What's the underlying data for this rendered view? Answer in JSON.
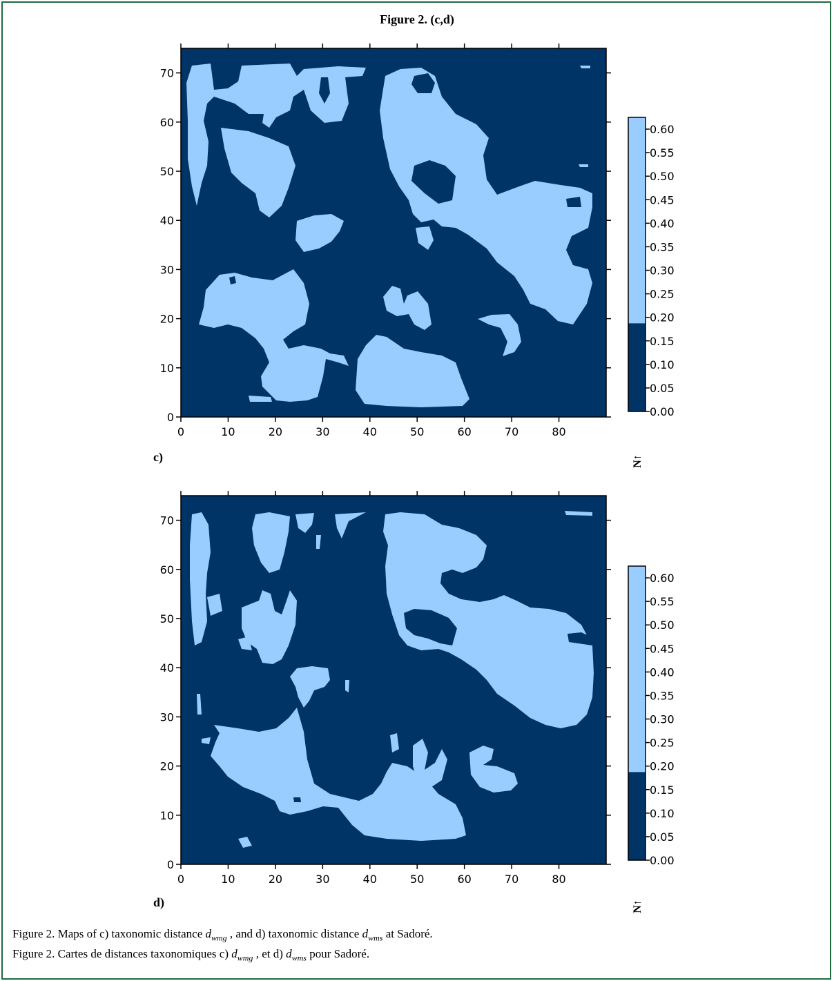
{
  "figure_title": "Figure 2. (c,d)",
  "colors": {
    "frame": "#1f6b3f",
    "low_class": "#003366",
    "high_class": "#99ccff"
  },
  "chart_data": [
    {
      "type": "heatmap",
      "panel_label": "c)",
      "north_label": "N↑",
      "xlim": [
        0,
        90
      ],
      "ylim": [
        0,
        75
      ],
      "x_ticks": [
        0,
        10,
        20,
        30,
        40,
        50,
        60,
        70,
        80
      ],
      "y_ticks": [
        0,
        10,
        20,
        30,
        40,
        50,
        60,
        70
      ],
      "classes": [
        {
          "range": [
            0.0,
            0.1875
          ],
          "color": "#003366"
        },
        {
          "range": [
            0.1875,
            0.625
          ],
          "color": "#99ccff"
        }
      ],
      "colorbar_ticks": [
        "0.00",
        "0.05",
        "0.10",
        "0.15",
        "0.20",
        "0.25",
        "0.30",
        "0.35",
        "0.40",
        "0.45",
        "0.50",
        "0.55",
        "0.60"
      ],
      "grid": false
    },
    {
      "type": "heatmap",
      "panel_label": "d)",
      "north_label": "N↑",
      "xlim": [
        0,
        90
      ],
      "ylim": [
        0,
        75
      ],
      "x_ticks": [
        0,
        10,
        20,
        30,
        40,
        50,
        60,
        70,
        80
      ],
      "y_ticks": [
        0,
        10,
        20,
        30,
        40,
        50,
        60,
        70
      ],
      "classes": [
        {
          "range": [
            0.0,
            0.1875
          ],
          "color": "#003366"
        },
        {
          "range": [
            0.1875,
            0.625
          ],
          "color": "#99ccff"
        }
      ],
      "colorbar_ticks": [
        "0.00",
        "0.05",
        "0.10",
        "0.15",
        "0.20",
        "0.25",
        "0.30",
        "0.35",
        "0.40",
        "0.45",
        "0.50",
        "0.55",
        "0.60"
      ],
      "grid": false
    }
  ],
  "caption": {
    "en": {
      "prefix": "Figure 2. Maps of c) taxonomic distance ",
      "d1": "d",
      "d1_sub": "wmg",
      "middle": " , and d) taxonomic distance ",
      "d2": "d",
      "d2_sub": "wms",
      "suffix": " at Sadoré."
    },
    "fr": {
      "prefix": "Figure 2. Cartes de distances taxonomiques c) ",
      "d1": "d",
      "d1_sub": "wmg",
      "middle": " , et d) ",
      "d2": "d",
      "d2_sub": "wms",
      "suffix": " pour Sadoré."
    }
  }
}
